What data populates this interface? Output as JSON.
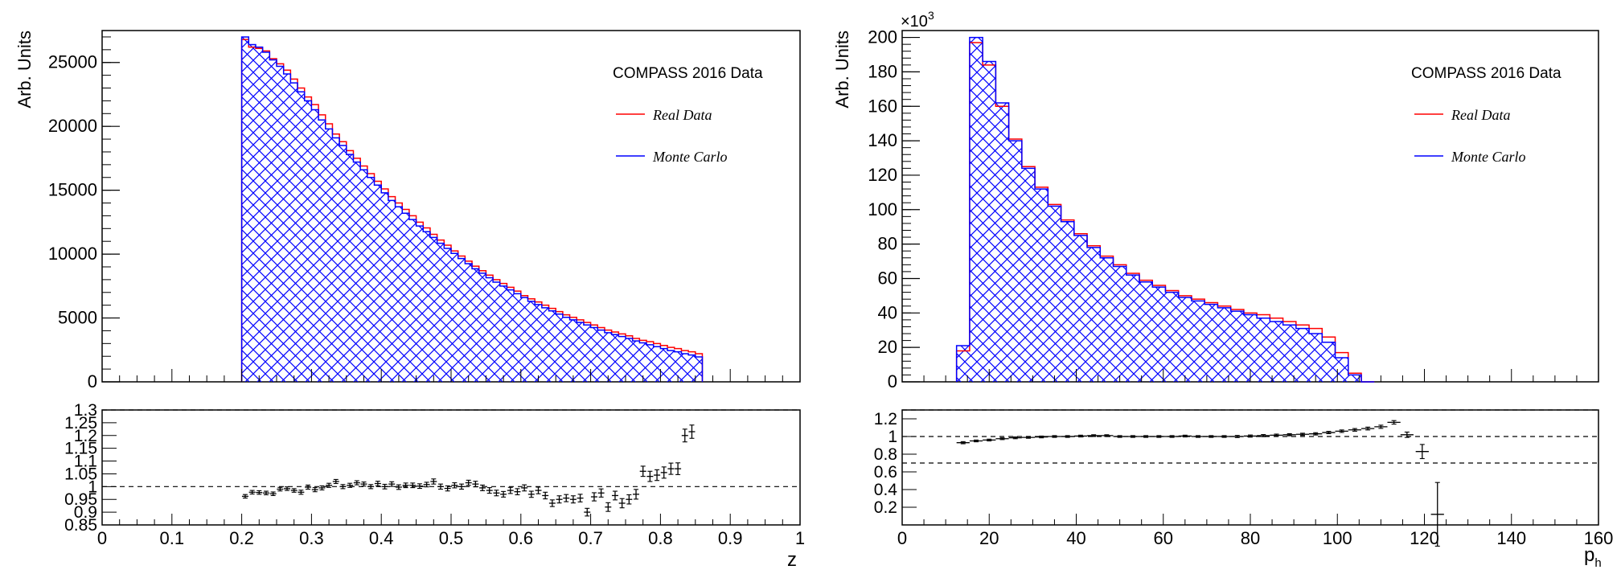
{
  "colors": {
    "real": "#ff0000",
    "mc": "#0000ff",
    "axis": "#000000"
  },
  "chart_data": [
    {
      "type": "histogram",
      "ylabel": "Arb. Units",
      "xlabel": "z",
      "legend_title": "COMPASS 2016 Data",
      "legend_real": "Real Data",
      "legend_mc": "Monte Carlo",
      "legend_position": "top-right",
      "xlim": [
        0,
        1
      ],
      "ylim": [
        0,
        27500
      ],
      "xticks": [
        "0",
        "0.1",
        "0.2",
        "0.3",
        "0.4",
        "0.5",
        "0.6",
        "0.7",
        "0.8",
        "0.9",
        "1"
      ],
      "yticks": [
        "0",
        "5000",
        "10000",
        "15000",
        "20000",
        "25000"
      ],
      "bin_start": 0.2,
      "bin_width": 0.01,
      "real_values": [
        26800,
        26200,
        26100,
        25900,
        25300,
        24900,
        24400,
        23700,
        23000,
        22300,
        21700,
        20900,
        20200,
        19400,
        18800,
        18100,
        17500,
        16900,
        16300,
        15700,
        15100,
        14500,
        14000,
        13500,
        13000,
        12500,
        12050,
        11550,
        11100,
        10700,
        10250,
        9850,
        9450,
        9050,
        8700,
        8350,
        8000,
        7700,
        7400,
        7100,
        6750,
        6500,
        6250,
        6000,
        5750,
        5500,
        5250,
        5050,
        4850,
        4650,
        4450,
        4250,
        4050,
        3900,
        3750,
        3600,
        3400,
        3250,
        3150,
        3000,
        2850,
        2700,
        2600,
        2450,
        2350,
        2200
      ],
      "mc_values": [
        27000,
        26400,
        26200,
        25800,
        25200,
        24700,
        24100,
        23400,
        22700,
        22000,
        21300,
        20500,
        19800,
        19100,
        18500,
        17800,
        17200,
        16600,
        16000,
        15400,
        14800,
        14200,
        13700,
        13200,
        12700,
        12200,
        11750,
        11300,
        10850,
        10450,
        10050,
        9650,
        9250,
        8850,
        8500,
        8150,
        7800,
        7500,
        7200,
        6900,
        6600,
        6300,
        6050,
        5800,
        5550,
        5300,
        5050,
        4850,
        4650,
        4450,
        4250,
        4050,
        3850,
        3700,
        3550,
        3400,
        3200,
        3050,
        2900,
        2750,
        2600,
        2450,
        2350,
        2200,
        2100,
        1950
      ],
      "ratio_ylim": [
        0.85,
        1.3
      ],
      "ratio_yticks": [
        "0.85",
        "0.9",
        "0.95",
        "1",
        "1.05",
        "1.1",
        "1.15",
        "1.2",
        "1.25",
        "1.3"
      ],
      "ratio_dashed_lines": [
        1,
        1.3
      ],
      "ratio_points": [
        {
          "x": 0.205,
          "y": 0.962,
          "err": 0.007
        },
        {
          "x": 0.215,
          "y": 0.978,
          "err": 0.007
        },
        {
          "x": 0.225,
          "y": 0.977,
          "err": 0.007
        },
        {
          "x": 0.235,
          "y": 0.975,
          "err": 0.007
        },
        {
          "x": 0.245,
          "y": 0.972,
          "err": 0.007
        },
        {
          "x": 0.255,
          "y": 0.99,
          "err": 0.007
        },
        {
          "x": 0.265,
          "y": 0.992,
          "err": 0.007
        },
        {
          "x": 0.275,
          "y": 0.985,
          "err": 0.007
        },
        {
          "x": 0.285,
          "y": 0.978,
          "err": 0.008
        },
        {
          "x": 0.295,
          "y": 0.998,
          "err": 0.008
        },
        {
          "x": 0.305,
          "y": 0.988,
          "err": 0.008
        },
        {
          "x": 0.315,
          "y": 0.995,
          "err": 0.008
        },
        {
          "x": 0.325,
          "y": 1.005,
          "err": 0.008
        },
        {
          "x": 0.335,
          "y": 1.02,
          "err": 0.008
        },
        {
          "x": 0.345,
          "y": 1.0,
          "err": 0.008
        },
        {
          "x": 0.355,
          "y": 1.005,
          "err": 0.008
        },
        {
          "x": 0.365,
          "y": 1.015,
          "err": 0.008
        },
        {
          "x": 0.375,
          "y": 1.01,
          "err": 0.008
        },
        {
          "x": 0.385,
          "y": 1.0,
          "err": 0.008
        },
        {
          "x": 0.395,
          "y": 1.012,
          "err": 0.009
        },
        {
          "x": 0.405,
          "y": 1.0,
          "err": 0.009
        },
        {
          "x": 0.415,
          "y": 1.01,
          "err": 0.009
        },
        {
          "x": 0.425,
          "y": 0.998,
          "err": 0.009
        },
        {
          "x": 0.435,
          "y": 1.005,
          "err": 0.009
        },
        {
          "x": 0.445,
          "y": 1.005,
          "err": 0.009
        },
        {
          "x": 0.455,
          "y": 1.002,
          "err": 0.009
        },
        {
          "x": 0.465,
          "y": 1.008,
          "err": 0.009
        },
        {
          "x": 0.475,
          "y": 1.02,
          "err": 0.01
        },
        {
          "x": 0.485,
          "y": 1.0,
          "err": 0.01
        },
        {
          "x": 0.495,
          "y": 0.993,
          "err": 0.01
        },
        {
          "x": 0.505,
          "y": 1.005,
          "err": 0.01
        },
        {
          "x": 0.515,
          "y": 1.0,
          "err": 0.01
        },
        {
          "x": 0.525,
          "y": 1.015,
          "err": 0.01
        },
        {
          "x": 0.535,
          "y": 1.01,
          "err": 0.011
        },
        {
          "x": 0.545,
          "y": 0.995,
          "err": 0.011
        },
        {
          "x": 0.555,
          "y": 0.985,
          "err": 0.011
        },
        {
          "x": 0.565,
          "y": 0.975,
          "err": 0.011
        },
        {
          "x": 0.575,
          "y": 0.97,
          "err": 0.011
        },
        {
          "x": 0.585,
          "y": 0.985,
          "err": 0.012
        },
        {
          "x": 0.595,
          "y": 0.98,
          "err": 0.012
        },
        {
          "x": 0.605,
          "y": 0.995,
          "err": 0.012
        },
        {
          "x": 0.615,
          "y": 0.97,
          "err": 0.012
        },
        {
          "x": 0.625,
          "y": 0.985,
          "err": 0.013
        },
        {
          "x": 0.635,
          "y": 0.965,
          "err": 0.013
        },
        {
          "x": 0.645,
          "y": 0.935,
          "err": 0.013
        },
        {
          "x": 0.655,
          "y": 0.95,
          "err": 0.014
        },
        {
          "x": 0.665,
          "y": 0.955,
          "err": 0.014
        },
        {
          "x": 0.675,
          "y": 0.95,
          "err": 0.014
        },
        {
          "x": 0.685,
          "y": 0.955,
          "err": 0.015
        },
        {
          "x": 0.695,
          "y": 0.9,
          "err": 0.015
        },
        {
          "x": 0.705,
          "y": 0.96,
          "err": 0.016
        },
        {
          "x": 0.715,
          "y": 0.975,
          "err": 0.016
        },
        {
          "x": 0.725,
          "y": 0.92,
          "err": 0.017
        },
        {
          "x": 0.735,
          "y": 0.965,
          "err": 0.017
        },
        {
          "x": 0.745,
          "y": 0.935,
          "err": 0.018
        },
        {
          "x": 0.755,
          "y": 0.95,
          "err": 0.018
        },
        {
          "x": 0.765,
          "y": 0.97,
          "err": 0.019
        },
        {
          "x": 0.775,
          "y": 1.06,
          "err": 0.02
        },
        {
          "x": 0.785,
          "y": 1.04,
          "err": 0.02
        },
        {
          "x": 0.795,
          "y": 1.045,
          "err": 0.021
        },
        {
          "x": 0.805,
          "y": 1.055,
          "err": 0.022
        },
        {
          "x": 0.815,
          "y": 1.07,
          "err": 0.022
        },
        {
          "x": 0.825,
          "y": 1.07,
          "err": 0.023
        },
        {
          "x": 0.835,
          "y": 1.2,
          "err": 0.025
        },
        {
          "x": 0.845,
          "y": 1.215,
          "err": 0.026
        }
      ]
    },
    {
      "type": "histogram",
      "ylabel": "Arb. Units",
      "xlabel": "p",
      "xlabel_sub": "h",
      "scale_label": "×10",
      "scale_exp": "3",
      "legend_title": "COMPASS 2016 Data",
      "legend_real": "Real Data",
      "legend_mc": "Monte Carlo",
      "legend_position": "top-right",
      "xlim": [
        0,
        160
      ],
      "ylim": [
        0,
        204
      ],
      "xticks": [
        "0",
        "20",
        "40",
        "60",
        "80",
        "100",
        "120",
        "140",
        "160"
      ],
      "yticks": [
        "0",
        "20",
        "40",
        "60",
        "80",
        "100",
        "120",
        "140",
        "160",
        "180",
        "200"
      ],
      "bin_start": 12.5,
      "bin_width": 3,
      "real_values": [
        18,
        197,
        184,
        160,
        141,
        125,
        113,
        103,
        94,
        86,
        79,
        73,
        68,
        63,
        59,
        56,
        53,
        50,
        48,
        46,
        44,
        42,
        40,
        39,
        37,
        35,
        33,
        31,
        26,
        17,
        5,
        0
      ],
      "mc_values": [
        21,
        200,
        186,
        162,
        140,
        124,
        112,
        102,
        93,
        85,
        78,
        72,
        67,
        62,
        58,
        55,
        52,
        49,
        47,
        45,
        43,
        41,
        39,
        37,
        35,
        33,
        31,
        28,
        23,
        14,
        4,
        0
      ],
      "ratio_ylim": [
        0,
        1.3
      ],
      "ratio_yticks": [
        "0.2",
        "0.4",
        "0.6",
        "0.8",
        "1",
        "1.2"
      ],
      "ratio_dashed_lines": [
        1,
        0.7,
        1.3
      ],
      "ratio_points": [
        {
          "x": 14,
          "y": 0.93,
          "err": 0.012,
          "xerr": 1.5
        },
        {
          "x": 17,
          "y": 0.95,
          "err": 0.01,
          "xerr": 1.5
        },
        {
          "x": 20,
          "y": 0.96,
          "err": 0.01,
          "xerr": 1.5
        },
        {
          "x": 23,
          "y": 0.975,
          "err": 0.01,
          "xerr": 1.5
        },
        {
          "x": 26,
          "y": 0.985,
          "err": 0.01,
          "xerr": 1.5
        },
        {
          "x": 29,
          "y": 0.99,
          "err": 0.01,
          "xerr": 1.5
        },
        {
          "x": 32,
          "y": 0.995,
          "err": 0.01,
          "xerr": 1.5
        },
        {
          "x": 35,
          "y": 1.0,
          "err": 0.01,
          "xerr": 1.5
        },
        {
          "x": 38,
          "y": 1.0,
          "err": 0.01,
          "xerr": 1.5
        },
        {
          "x": 41,
          "y": 1.005,
          "err": 0.01,
          "xerr": 1.5
        },
        {
          "x": 44,
          "y": 1.01,
          "err": 0.01,
          "xerr": 1.5
        },
        {
          "x": 47,
          "y": 1.01,
          "err": 0.01,
          "xerr": 1.5
        },
        {
          "x": 50,
          "y": 1.0,
          "err": 0.01,
          "xerr": 1.5
        },
        {
          "x": 53,
          "y": 1.0,
          "err": 0.01,
          "xerr": 1.5
        },
        {
          "x": 56,
          "y": 1.0,
          "err": 0.01,
          "xerr": 1.5
        },
        {
          "x": 59,
          "y": 1.0,
          "err": 0.01,
          "xerr": 1.5
        },
        {
          "x": 62,
          "y": 1.0,
          "err": 0.01,
          "xerr": 1.5
        },
        {
          "x": 65,
          "y": 1.005,
          "err": 0.01,
          "xerr": 1.5
        },
        {
          "x": 68,
          "y": 1.0,
          "err": 0.01,
          "xerr": 1.5
        },
        {
          "x": 71,
          "y": 1.0,
          "err": 0.01,
          "xerr": 1.5
        },
        {
          "x": 74,
          "y": 1.0,
          "err": 0.01,
          "xerr": 1.5
        },
        {
          "x": 77,
          "y": 1.0,
          "err": 0.012,
          "xerr": 1.5
        },
        {
          "x": 80,
          "y": 1.005,
          "err": 0.012,
          "xerr": 1.5
        },
        {
          "x": 83,
          "y": 1.01,
          "err": 0.012,
          "xerr": 1.5
        },
        {
          "x": 86,
          "y": 1.015,
          "err": 0.012,
          "xerr": 1.5
        },
        {
          "x": 89,
          "y": 1.02,
          "err": 0.012,
          "xerr": 1.5
        },
        {
          "x": 92,
          "y": 1.025,
          "err": 0.012,
          "xerr": 1.5
        },
        {
          "x": 95,
          "y": 1.03,
          "err": 0.013,
          "xerr": 1.5
        },
        {
          "x": 98,
          "y": 1.045,
          "err": 0.013,
          "xerr": 1.5
        },
        {
          "x": 101,
          "y": 1.06,
          "err": 0.014,
          "xerr": 1.5
        },
        {
          "x": 104,
          "y": 1.075,
          "err": 0.015,
          "xerr": 1.5
        },
        {
          "x": 107,
          "y": 1.09,
          "err": 0.016,
          "xerr": 1.5
        },
        {
          "x": 110,
          "y": 1.11,
          "err": 0.018,
          "xerr": 1.5
        },
        {
          "x": 113,
          "y": 1.16,
          "err": 0.02,
          "xerr": 1.5
        },
        {
          "x": 116,
          "y": 1.02,
          "err": 0.03,
          "xerr": 1.5
        },
        {
          "x": 119.5,
          "y": 0.83,
          "err": 0.08,
          "xerr": 1.5
        },
        {
          "x": 123,
          "y": 0.12,
          "err": 0.36,
          "xerr": 1.5
        }
      ]
    }
  ]
}
